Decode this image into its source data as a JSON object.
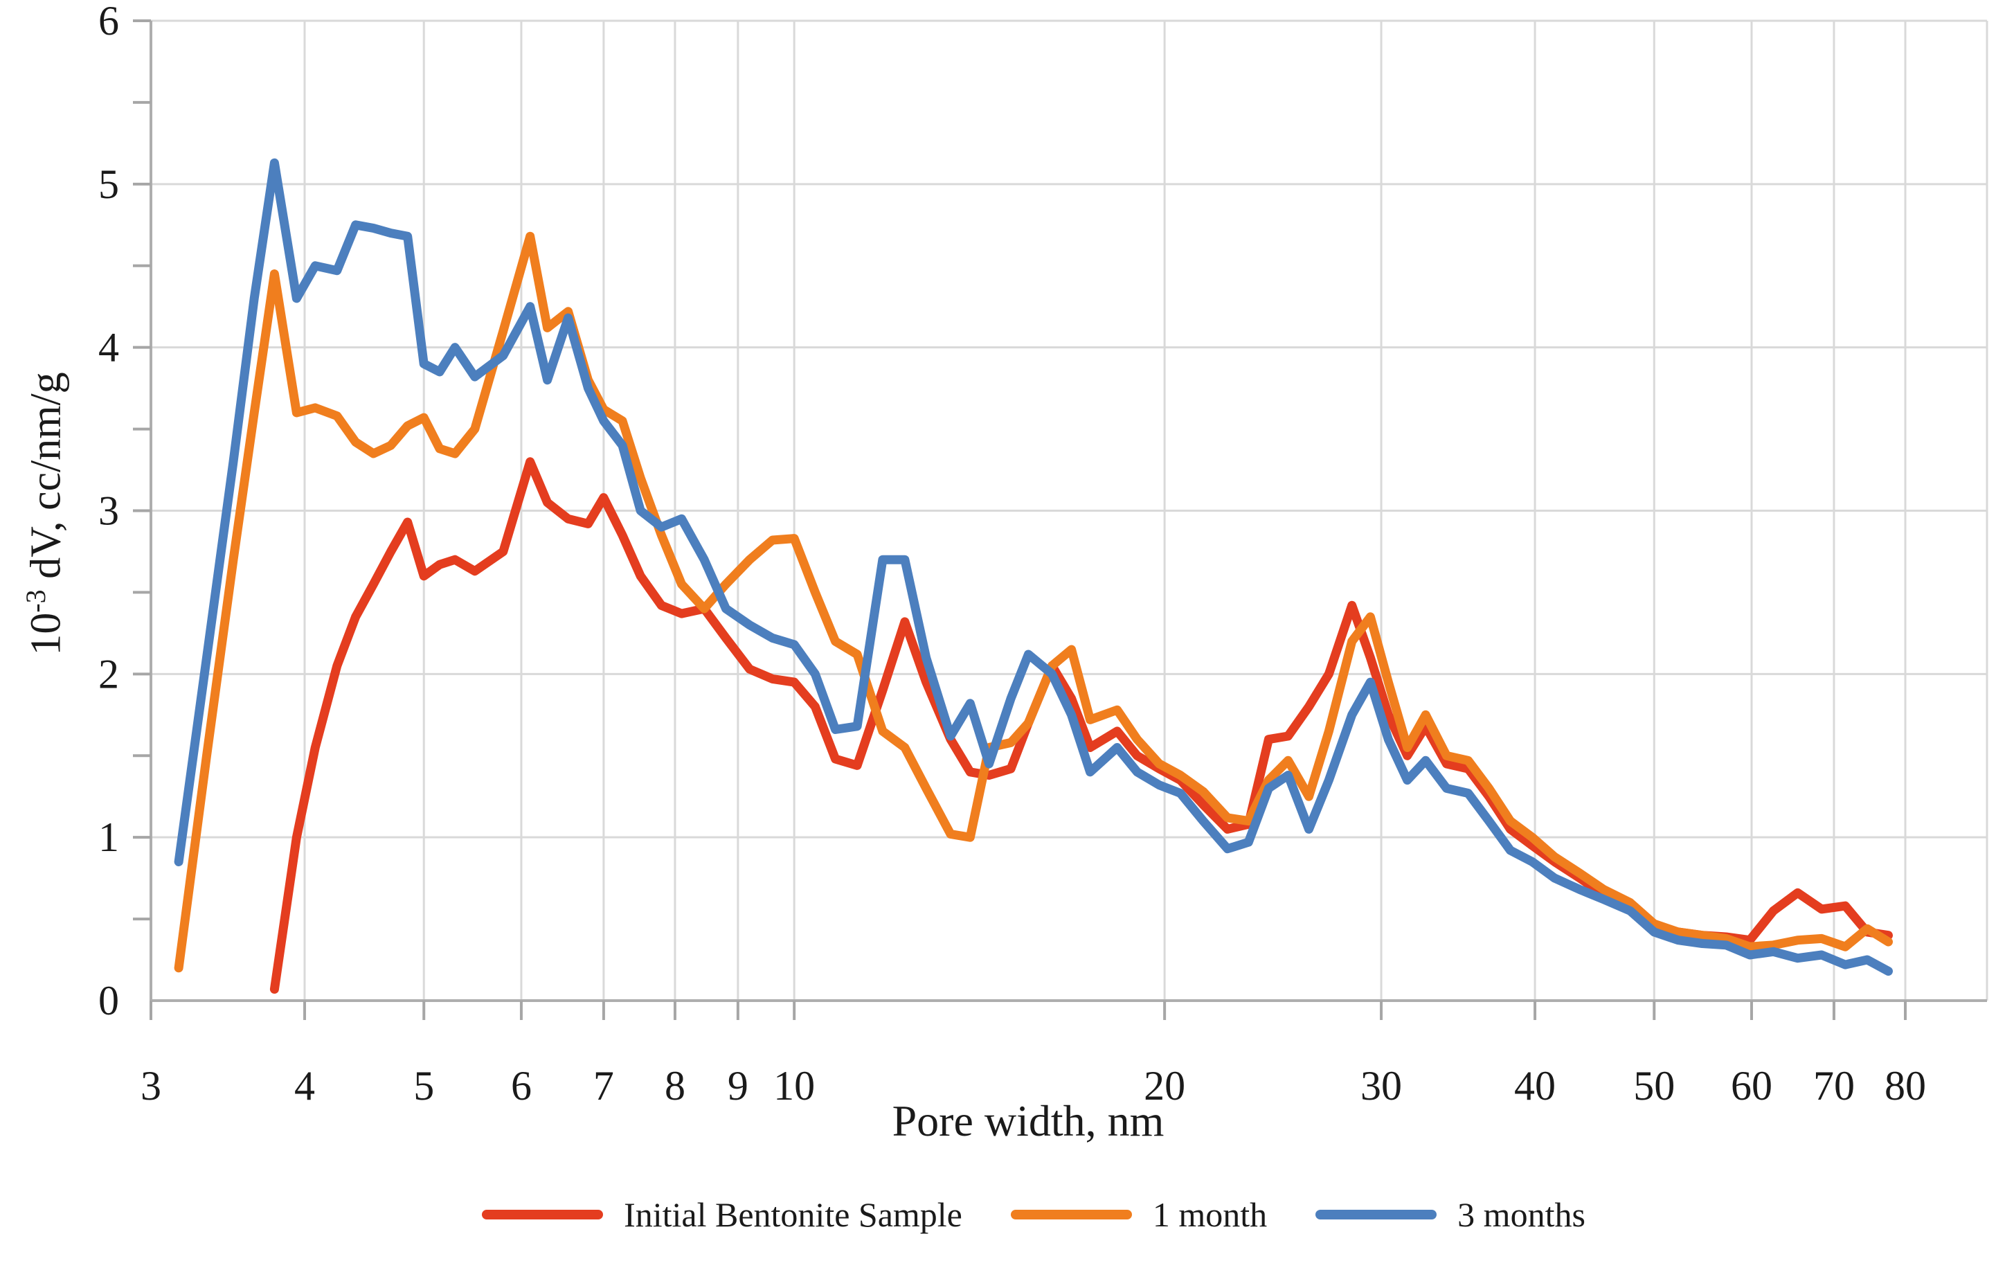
{
  "figure_name": "pore-width-distribution-chart",
  "colors": {
    "background": "#ffffff",
    "grid": "#d9d9d9",
    "axis": "#aeaeae",
    "tick": "#a6a6a6",
    "text": "#1a1a1a",
    "series_red": "#e43d1f",
    "series_orange": "#f07e1e",
    "series_blue": "#4c7fbe"
  },
  "y_axis_label": {
    "base": "10",
    "sup": "-3",
    "rest": " dV, cc/nm/g"
  },
  "chart_data": {
    "type": "line",
    "title": "",
    "xlabel": "Pore width, nm",
    "ylabel": "10^-3 dV, cc/nm/g",
    "x_scale": "log",
    "xlim": [
      3,
      80
    ],
    "ylim": [
      0,
      6
    ],
    "grid": true,
    "legend_position": "bottom",
    "x_ticks": [
      3,
      4,
      5,
      6,
      7,
      8,
      9,
      10,
      20,
      30,
      40,
      50,
      60,
      70,
      80
    ],
    "y_ticks": [
      0,
      1,
      2,
      3,
      4,
      5,
      6
    ],
    "y_minor_tick_step": 0.5,
    "x": [
      3.0,
      3.16,
      3.33,
      3.5,
      3.64,
      3.78,
      3.94,
      4.08,
      4.25,
      4.4,
      4.55,
      4.7,
      4.85,
      5.0,
      5.15,
      5.3,
      5.5,
      5.8,
      6.1,
      6.3,
      6.55,
      6.8,
      7.0,
      7.25,
      7.5,
      7.8,
      8.1,
      8.45,
      8.8,
      9.2,
      9.6,
      10.0,
      10.4,
      10.8,
      11.25,
      11.8,
      12.3,
      12.8,
      13.4,
      13.9,
      14.4,
      15.0,
      15.5,
      16.2,
      16.8,
      17.4,
      18.3,
      19.0,
      19.8,
      20.6,
      21.5,
      22.5,
      23.4,
      24.3,
      25.2,
      26.2,
      27.2,
      28.4,
      29.4,
      30.4,
      31.5,
      32.6,
      33.9,
      35.3,
      36.7,
      38.2,
      39.8,
      41.5,
      43.5,
      45.5,
      47.8,
      50.0,
      52.3,
      54.7,
      57.2,
      59.8,
      62.5,
      65.4,
      68.4,
      71.5,
      74.5,
      77.5
    ],
    "series": [
      {
        "name": "Initial Bentonite Sample",
        "color": "#e43d1f",
        "values": [
          null,
          null,
          null,
          null,
          null,
          0.07,
          1.0,
          1.55,
          2.05,
          2.35,
          2.55,
          2.75,
          2.93,
          2.6,
          2.67,
          2.7,
          2.63,
          2.75,
          3.3,
          3.05,
          2.95,
          2.92,
          3.08,
          2.85,
          2.6,
          2.42,
          2.37,
          2.4,
          2.22,
          2.03,
          1.97,
          1.95,
          1.8,
          1.48,
          1.44,
          1.9,
          2.32,
          1.95,
          1.6,
          1.4,
          1.38,
          1.42,
          1.7,
          2.05,
          1.85,
          1.55,
          1.65,
          1.5,
          1.42,
          1.35,
          1.2,
          1.05,
          1.08,
          1.6,
          1.62,
          1.8,
          2.0,
          2.42,
          2.1,
          1.75,
          1.5,
          1.68,
          1.45,
          1.42,
          1.25,
          1.05,
          0.95,
          0.85,
          0.75,
          0.65,
          0.57,
          0.46,
          0.42,
          0.4,
          0.39,
          0.37,
          0.55,
          0.66,
          0.56,
          0.58,
          0.42,
          0.4
        ]
      },
      {
        "name": "1 month",
        "color": "#f07e1e",
        "values": [
          null,
          0.2,
          1.5,
          2.7,
          3.6,
          4.45,
          3.6,
          3.63,
          3.58,
          3.42,
          3.35,
          3.4,
          3.52,
          3.57,
          3.38,
          3.35,
          3.5,
          4.1,
          4.68,
          4.12,
          4.22,
          3.8,
          3.62,
          3.55,
          3.2,
          2.85,
          2.55,
          2.4,
          2.55,
          2.7,
          2.82,
          2.83,
          2.5,
          2.2,
          2.12,
          1.65,
          1.55,
          1.3,
          1.02,
          1.0,
          1.55,
          1.58,
          1.7,
          2.05,
          2.15,
          1.72,
          1.78,
          1.6,
          1.45,
          1.38,
          1.28,
          1.12,
          1.1,
          1.35,
          1.47,
          1.25,
          1.65,
          2.2,
          2.35,
          1.95,
          1.55,
          1.75,
          1.5,
          1.47,
          1.3,
          1.1,
          1.0,
          0.88,
          0.78,
          0.68,
          0.6,
          0.47,
          0.42,
          0.4,
          0.38,
          0.33,
          0.34,
          0.37,
          0.38,
          0.33,
          0.44,
          0.36
        ]
      },
      {
        "name": "3 months",
        "color": "#4c7fbe",
        "values": [
          null,
          0.85,
          2.1,
          3.3,
          4.3,
          5.13,
          4.3,
          4.5,
          4.47,
          4.75,
          4.73,
          4.7,
          4.68,
          3.9,
          3.85,
          4.0,
          3.82,
          3.95,
          4.25,
          3.8,
          4.18,
          3.75,
          3.55,
          3.4,
          3.0,
          2.9,
          2.95,
          2.7,
          2.4,
          2.3,
          2.22,
          2.18,
          2.0,
          1.66,
          1.68,
          2.7,
          2.7,
          2.1,
          1.62,
          1.82,
          1.45,
          1.85,
          2.12,
          2.0,
          1.75,
          1.4,
          1.55,
          1.4,
          1.32,
          1.27,
          1.1,
          0.93,
          0.97,
          1.3,
          1.38,
          1.05,
          1.35,
          1.75,
          1.95,
          1.6,
          1.35,
          1.47,
          1.3,
          1.27,
          1.1,
          0.92,
          0.85,
          0.75,
          0.68,
          0.62,
          0.55,
          0.42,
          0.37,
          0.35,
          0.34,
          0.28,
          0.3,
          0.26,
          0.28,
          0.22,
          0.25,
          0.18
        ]
      }
    ]
  }
}
